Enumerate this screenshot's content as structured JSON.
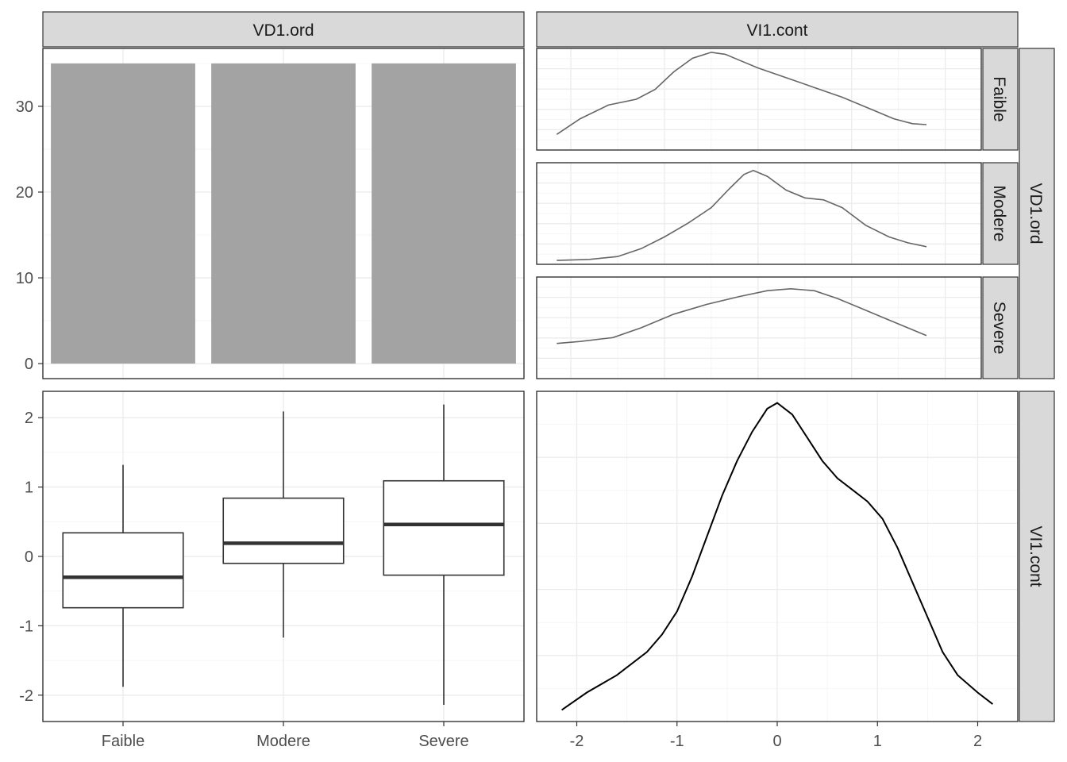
{
  "chart_data": [
    {
      "panel": "bar",
      "type": "bar",
      "strip_top": "VD1.ord",
      "categories": [
        "Faible",
        "Modere",
        "Severe"
      ],
      "values": [
        35,
        35,
        35
      ],
      "ylim": [
        -1.75,
        36.75
      ],
      "yticks": [
        0,
        10,
        20,
        30
      ],
      "fill": "#a3a3a3"
    },
    {
      "panel": "density-facets",
      "type": "line",
      "strip_top": "VI1.cont",
      "strip_right": "VD1.ord",
      "facets": [
        {
          "label": "Faible",
          "x": [
            -2.15,
            -1.9,
            -1.6,
            -1.3,
            -1.1,
            -0.9,
            -0.7,
            -0.5,
            -0.35,
            -0.2,
            0.0,
            0.3,
            0.6,
            0.9,
            1.2,
            1.45,
            1.65,
            1.8
          ],
          "y": [
            0.12,
            0.2,
            0.27,
            0.3,
            0.35,
            0.44,
            0.51,
            0.54,
            0.53,
            0.5,
            0.46,
            0.41,
            0.36,
            0.31,
            0.25,
            0.2,
            0.175,
            0.17
          ]
        },
        {
          "label": "Modere",
          "x": [
            -2.15,
            -1.8,
            -1.5,
            -1.25,
            -1.0,
            -0.75,
            -0.5,
            -0.3,
            -0.15,
            -0.05,
            0.1,
            0.3,
            0.5,
            0.7,
            0.9,
            1.15,
            1.4,
            1.6,
            1.8
          ],
          "y": [
            0.06,
            0.065,
            0.08,
            0.12,
            0.18,
            0.25,
            0.33,
            0.43,
            0.5,
            0.52,
            0.49,
            0.42,
            0.38,
            0.37,
            0.33,
            0.24,
            0.18,
            0.15,
            0.13
          ]
        },
        {
          "label": "Severe",
          "x": [
            -2.15,
            -1.9,
            -1.55,
            -1.25,
            -0.9,
            -0.55,
            -0.2,
            0.1,
            0.35,
            0.6,
            0.85,
            1.1,
            1.35,
            1.6,
            1.8
          ],
          "y": [
            0.22,
            0.23,
            0.25,
            0.3,
            0.37,
            0.42,
            0.46,
            0.49,
            0.5,
            0.49,
            0.45,
            0.4,
            0.35,
            0.3,
            0.26
          ]
        }
      ],
      "xlim": [
        -2.365,
        2.385
      ],
      "ylim": [
        0.04,
        0.56
      ],
      "line_color": "#666666"
    },
    {
      "panel": "boxplot",
      "type": "boxplot",
      "categories": [
        "Faible",
        "Modere",
        "Severe"
      ],
      "boxes": [
        {
          "category": "Faible",
          "whisker_low": -1.88,
          "q1": -0.74,
          "median": -0.3,
          "q3": 0.34,
          "whisker_high": 1.32
        },
        {
          "category": "Modere",
          "whisker_low": -1.17,
          "q1": -0.1,
          "median": 0.19,
          "q3": 0.84,
          "whisker_high": 2.09
        },
        {
          "category": "Severe",
          "whisker_low": -2.14,
          "q1": -0.27,
          "median": 0.46,
          "q3": 1.09,
          "whisker_high": 2.19
        }
      ],
      "ylim": [
        -2.38,
        2.38
      ],
      "yticks": [
        -2,
        -1,
        0,
        1,
        2
      ],
      "xticks": [
        "Faible",
        "Modere",
        "Severe"
      ]
    },
    {
      "panel": "density",
      "type": "line",
      "strip_right": "VI1.cont",
      "x": [
        -2.15,
        -1.9,
        -1.6,
        -1.3,
        -1.15,
        -1.0,
        -0.85,
        -0.7,
        -0.55,
        -0.4,
        -0.25,
        -0.1,
        0.0,
        0.15,
        0.3,
        0.45,
        0.6,
        0.75,
        0.9,
        1.05,
        1.2,
        1.35,
        1.5,
        1.65,
        1.8,
        2.0,
        2.15
      ],
      "y": [
        0.05,
        0.08,
        0.11,
        0.15,
        0.18,
        0.22,
        0.28,
        0.35,
        0.42,
        0.48,
        0.53,
        0.57,
        0.58,
        0.56,
        0.52,
        0.48,
        0.45,
        0.43,
        0.41,
        0.38,
        0.33,
        0.27,
        0.21,
        0.15,
        0.11,
        0.08,
        0.06
      ],
      "xlim": [
        -2.4,
        2.4
      ],
      "ylim": [
        0.03,
        0.6
      ],
      "xticks": [
        -2,
        -1,
        0,
        1,
        2
      ],
      "line_color": "#000000"
    }
  ]
}
